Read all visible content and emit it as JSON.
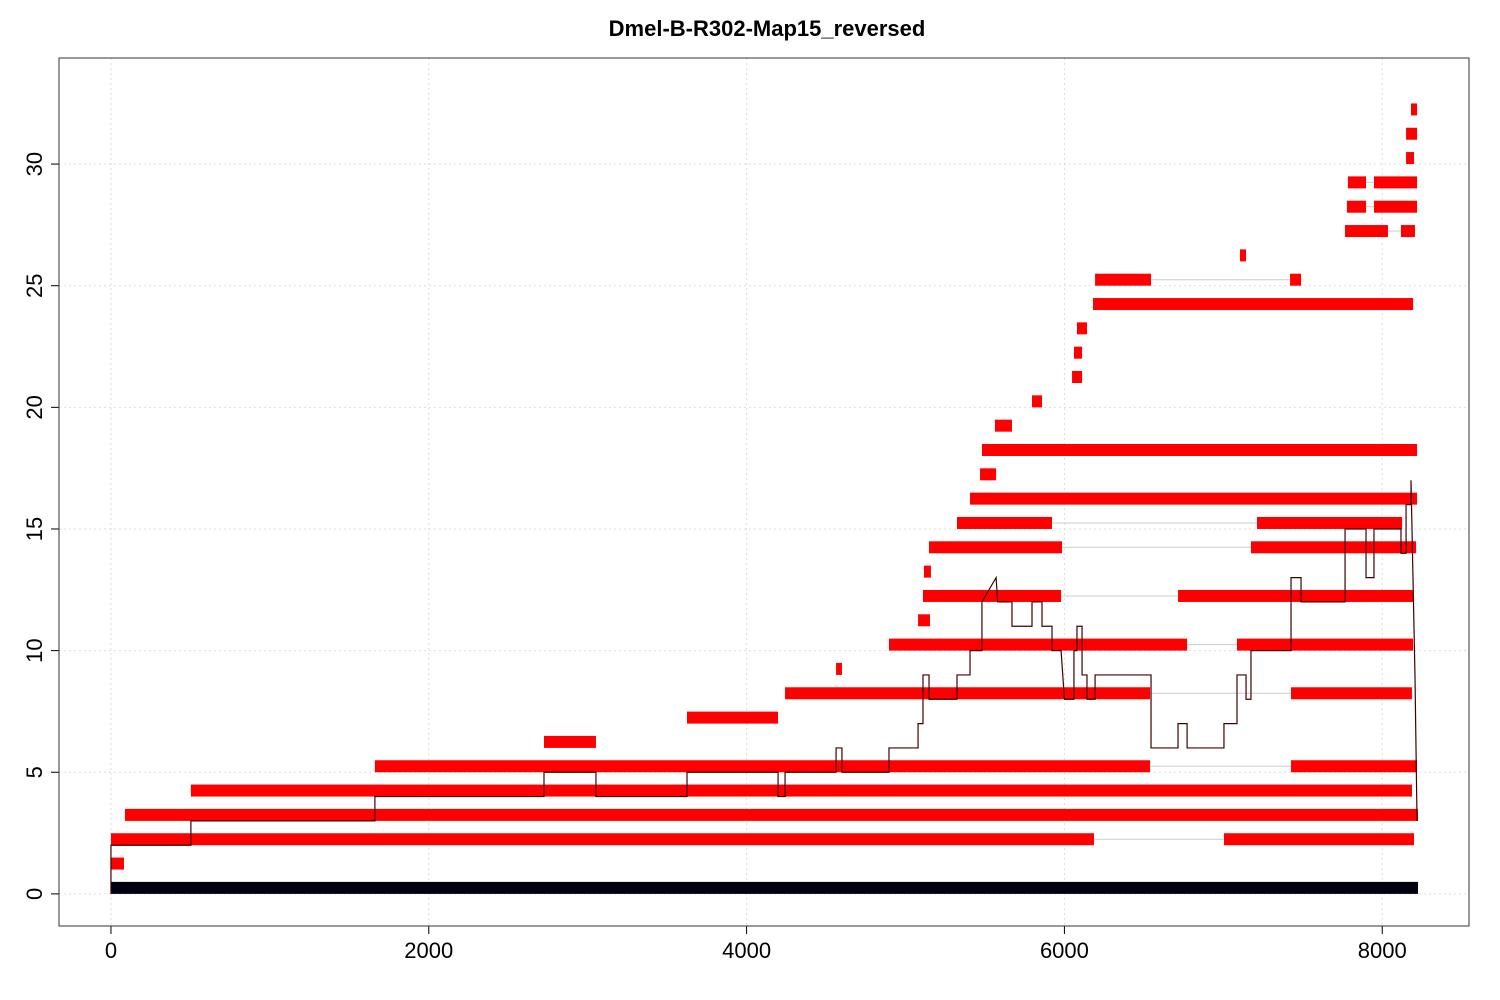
{
  "chart_data": {
    "type": "segments",
    "title": "Dmel-B-R302-Map15_reversed",
    "xlim": [
      -327,
      8546
    ],
    "ylim": [
      -1.32,
      34.36
    ],
    "xticks": [
      0,
      2000,
      4000,
      6000,
      8000
    ],
    "yticks": [
      0,
      5,
      10,
      15,
      20,
      25,
      30
    ],
    "grid": true,
    "series": [
      {
        "color": "#000010",
        "segments": [
          {
            "y": 0,
            "x0": 0,
            "x1": 8225
          }
        ]
      },
      {
        "color": "#ff0000",
        "segments": [
          {
            "y": 1,
            "x0": 0,
            "x1": 82
          },
          {
            "y": 2,
            "x0": 0,
            "x1": 6186
          },
          {
            "y": 2,
            "x0": 7004,
            "x1": 8200
          },
          {
            "y": 3,
            "x0": 88,
            "x1": 8225
          },
          {
            "y": 4,
            "x0": 503,
            "x1": 8187
          },
          {
            "y": 5,
            "x0": 1661,
            "x1": 6539
          },
          {
            "y": 5,
            "x0": 7426,
            "x1": 8219
          },
          {
            "y": 6,
            "x0": 2725,
            "x1": 3052
          },
          {
            "y": 7,
            "x0": 3625,
            "x1": 4198
          },
          {
            "y": 8,
            "x0": 4242,
            "x1": 6539
          },
          {
            "y": 8,
            "x0": 7426,
            "x1": 8187
          },
          {
            "y": 9,
            "x0": 4563,
            "x1": 4600
          },
          {
            "y": 10,
            "x0": 4896,
            "x1": 6772
          },
          {
            "y": 10,
            "x0": 7086,
            "x1": 8194
          },
          {
            "y": 11,
            "x0": 5079,
            "x1": 5154
          },
          {
            "y": 12,
            "x0": 5110,
            "x1": 5979
          },
          {
            "y": 12,
            "x0": 6715,
            "x1": 8194
          },
          {
            "y": 13,
            "x0": 5116,
            "x1": 5160
          },
          {
            "y": 14,
            "x0": 5148,
            "x1": 5985
          },
          {
            "y": 14,
            "x0": 7174,
            "x1": 8213
          },
          {
            "y": 15,
            "x0": 5324,
            "x1": 5922
          },
          {
            "y": 15,
            "x0": 7212,
            "x1": 8125
          },
          {
            "y": 16,
            "x0": 5406,
            "x1": 8219
          },
          {
            "y": 17,
            "x0": 5469,
            "x1": 5570
          },
          {
            "y": 18,
            "x0": 5481,
            "x1": 8219
          },
          {
            "y": 19,
            "x0": 5563,
            "x1": 5670
          },
          {
            "y": 20,
            "x0": 5796,
            "x1": 5859
          },
          {
            "y": 21,
            "x0": 6048,
            "x1": 6111
          },
          {
            "y": 22,
            "x0": 6060,
            "x1": 6111
          },
          {
            "y": 23,
            "x0": 6079,
            "x1": 6142
          },
          {
            "y": 24,
            "x0": 6180,
            "x1": 8194
          },
          {
            "y": 25,
            "x0": 6193,
            "x1": 6545
          },
          {
            "y": 25,
            "x0": 7420,
            "x1": 7489
          },
          {
            "y": 26,
            "x0": 7105,
            "x1": 7143
          },
          {
            "y": 27,
            "x0": 7766,
            "x1": 8036
          },
          {
            "y": 27,
            "x0": 8118,
            "x1": 8206
          },
          {
            "y": 28,
            "x0": 7778,
            "x1": 7898
          },
          {
            "y": 28,
            "x0": 7948,
            "x1": 8219
          },
          {
            "y": 29,
            "x0": 7784,
            "x1": 7898
          },
          {
            "y": 29,
            "x0": 7948,
            "x1": 8219
          },
          {
            "y": 30,
            "x0": 8150,
            "x1": 8200
          },
          {
            "y": 31,
            "x0": 8150,
            "x1": 8219
          },
          {
            "y": 32,
            "x0": 8181,
            "x1": 8219
          }
        ]
      }
    ],
    "line": {
      "color": "#400000",
      "x": [
        0,
        0,
        503,
        503,
        1661,
        1661,
        2725,
        2725,
        3052,
        3052,
        3625,
        3625,
        4198,
        4198,
        4242,
        4242,
        4563,
        4563,
        4600,
        4600,
        4896,
        4896,
        5079,
        5079,
        5110,
        5110,
        5148,
        5148,
        5324,
        5324,
        5406,
        5406,
        5481,
        5481,
        5570,
        5580,
        5670,
        5670,
        5796,
        5796,
        5859,
        5859,
        5922,
        5922,
        5979,
        6000,
        6060,
        6060,
        6079,
        6079,
        6111,
        6111,
        6142,
        6142,
        6193,
        6193,
        6545,
        6545,
        6715,
        6715,
        6772,
        6772,
        7004,
        7004,
        7086,
        7086,
        7143,
        7143,
        7174,
        7174,
        7426,
        7426,
        7489,
        7489,
        7766,
        7766,
        7898,
        7898,
        7948,
        7948,
        8118,
        8118,
        8150,
        8150,
        8181,
        8181,
        8206,
        8219
      ],
      "y": [
        0,
        2,
        2,
        3,
        3,
        4,
        4,
        5,
        5,
        4,
        4,
        5,
        5,
        4,
        4,
        5,
        5,
        6,
        6,
        5,
        5,
        6,
        6,
        7,
        7,
        9,
        9,
        8,
        8,
        9,
        9,
        10,
        10,
        12,
        13,
        12,
        12,
        11,
        11,
        12,
        12,
        11,
        11,
        10,
        10,
        8,
        8,
        10,
        10,
        11,
        11,
        9,
        9,
        8,
        8,
        9,
        9,
        6,
        6,
        7,
        7,
        6,
        6,
        7,
        7,
        9,
        9,
        8,
        8,
        10,
        10,
        13,
        13,
        12,
        12,
        15,
        15,
        13,
        13,
        15,
        15,
        14,
        14,
        16,
        16,
        17,
        9,
        3
      ]
    }
  }
}
